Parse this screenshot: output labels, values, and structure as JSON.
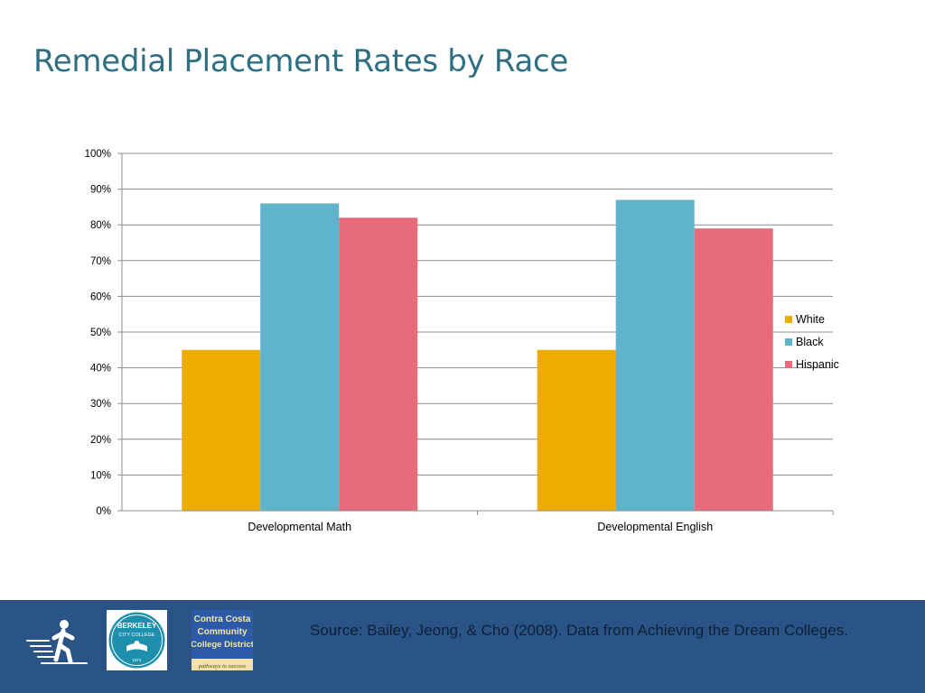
{
  "slide": {
    "title": "Remedial Placement Rates by Race",
    "source": "Source: Bailey, Jeong, & Cho (2008). Data from Achieving the Dream Colleges."
  },
  "logos": {
    "bcc": {
      "line1": "BERKELEY",
      "line2": "CITY COLLEGE",
      "year": "1974"
    },
    "ccc": {
      "line1": "Contra Costa",
      "line2": "Community",
      "line3": "College District",
      "tagline": "pathways to success"
    }
  },
  "colors": {
    "White": "#eeab00",
    "Black": "#5fb3cd",
    "Hispanic": "#e76b7b",
    "footer": "#2a5486",
    "title": "#2e6f82"
  },
  "chart_data": {
    "type": "bar",
    "title": "",
    "xlabel": "",
    "ylabel": "",
    "categories": [
      "Developmental Math",
      "Developmental English"
    ],
    "series": [
      {
        "name": "White",
        "values": [
          45,
          45
        ]
      },
      {
        "name": "Black",
        "values": [
          86,
          87
        ]
      },
      {
        "name": "Hispanic",
        "values": [
          82,
          79
        ]
      }
    ],
    "ylim": [
      0,
      100
    ],
    "yticks": [
      "0%",
      "10%",
      "20%",
      "30%",
      "40%",
      "50%",
      "60%",
      "70%",
      "80%",
      "90%",
      "100%"
    ],
    "grid": true,
    "legend": "right"
  }
}
